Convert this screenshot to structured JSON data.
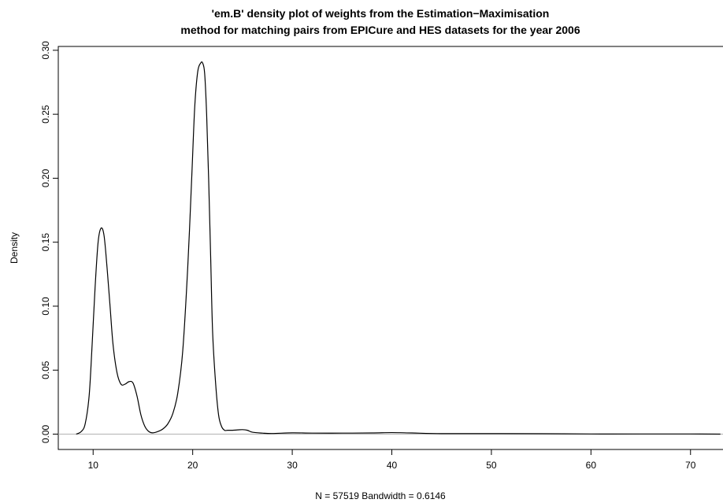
{
  "chart_data": {
    "type": "line",
    "title": [
      "'em.B' density plot of weights from the Estimation−Maximisation",
      "method for matching pairs from EPICure and HES datasets for the year 2006"
    ],
    "xlabel": "N = 57519   Bandwidth = 0.6146",
    "ylabel": "Density",
    "xlim": [
      6.5,
      73.5
    ],
    "ylim": [
      -0.012,
      0.303
    ],
    "x_ticks": [
      10,
      20,
      30,
      40,
      50,
      60,
      70
    ],
    "x_tick_labels": [
      "10",
      "20",
      "30",
      "40",
      "50",
      "60",
      "70"
    ],
    "y_ticks": [
      0.0,
      0.05,
      0.1,
      0.15,
      0.2,
      0.25,
      0.3
    ],
    "y_tick_labels": [
      "0.00",
      "0.05",
      "0.10",
      "0.15",
      "0.20",
      "0.25",
      "0.30"
    ],
    "baseline": 0,
    "baseline_color": "#b3b3b3",
    "line_color": "#000000",
    "grid": false,
    "series": [
      {
        "x": [
          8.3,
          8.8,
          9.2,
          9.6,
          9.9,
          10.2,
          10.5,
          10.8,
          11.1,
          11.4,
          11.7,
          12.0,
          12.4,
          12.8,
          13.2,
          13.6,
          14.0,
          14.4,
          14.8,
          15.2,
          15.6,
          16.0,
          16.5,
          17.0,
          17.5,
          18.0,
          18.5,
          19.0,
          19.5,
          19.9,
          20.2,
          20.5,
          20.8,
          21.0,
          21.2,
          21.4,
          21.6,
          21.8,
          22.0,
          22.3,
          22.6,
          22.9,
          23.2,
          23.5,
          24.0,
          24.5,
          25.0,
          25.5,
          26.0,
          27.0,
          28.0,
          30.0,
          32.0,
          35.0,
          38.0,
          40.0,
          42.0,
          45.0,
          50.0,
          55.0,
          60.0,
          65.0,
          70.0,
          73.0
        ],
        "y": [
          0.0,
          0.002,
          0.008,
          0.03,
          0.07,
          0.115,
          0.15,
          0.161,
          0.155,
          0.13,
          0.1,
          0.07,
          0.048,
          0.039,
          0.039,
          0.041,
          0.04,
          0.03,
          0.015,
          0.006,
          0.002,
          0.001,
          0.002,
          0.004,
          0.008,
          0.016,
          0.032,
          0.065,
          0.13,
          0.2,
          0.255,
          0.283,
          0.29,
          0.29,
          0.282,
          0.25,
          0.2,
          0.14,
          0.08,
          0.04,
          0.015,
          0.006,
          0.003,
          0.003,
          0.003,
          0.0033,
          0.0035,
          0.003,
          0.0015,
          0.0008,
          0.0005,
          0.001,
          0.0008,
          0.0008,
          0.0009,
          0.0012,
          0.0009,
          0.0004,
          0.0004,
          0.0003,
          0.0001,
          0.0001,
          0.0001,
          0.0
        ]
      }
    ]
  }
}
